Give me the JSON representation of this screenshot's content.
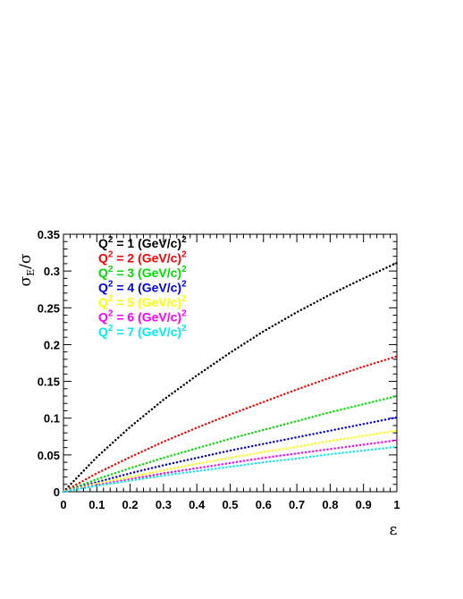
{
  "chart_data": {
    "type": "line",
    "xlabel": "ε",
    "ylabel_main": "σ",
    "ylabel_sub": "E",
    "ylabel_tail": "/σ",
    "xlim": [
      0,
      1
    ],
    "ylim": [
      0,
      0.35
    ],
    "x_ticks": [
      "0",
      "0.1",
      "0.2",
      "0.3",
      "0.4",
      "0.5",
      "0.6",
      "0.7",
      "0.8",
      "0.9",
      "1"
    ],
    "y_ticks": [
      "0",
      "0.05",
      "0.1",
      "0.15",
      "0.2",
      "0.25",
      "0.3",
      "0.35"
    ],
    "grid": false,
    "legend_position": "top-left",
    "x": [
      0,
      0.1,
      0.2,
      0.3,
      0.4,
      0.5,
      0.6,
      0.7,
      0.8,
      0.9,
      1.0
    ],
    "series": [
      {
        "name": "Q^2 = 1 (GeV/c)^2",
        "label_main": "Q",
        "label_sup1": "2",
        "label_mid": " = 1 (GeV/c)",
        "label_sup2": "2",
        "color": "#000000",
        "values": [
          0,
          0.047,
          0.088,
          0.125,
          0.158,
          0.189,
          0.218,
          0.244,
          0.268,
          0.29,
          0.311
        ]
      },
      {
        "name": "Q^2 = 2 (GeV/c)^2",
        "label_main": "Q",
        "label_sup1": "2",
        "label_mid": " = 2 (GeV/c)",
        "label_sup2": "2",
        "color": "#ff0000",
        "values": [
          0,
          0.025,
          0.047,
          0.068,
          0.087,
          0.105,
          0.122,
          0.139,
          0.155,
          0.17,
          0.184
        ]
      },
      {
        "name": "Q^2 = 3 (GeV/c)^2",
        "label_main": "Q",
        "label_sup1": "2",
        "label_mid": " = 3 (GeV/c)",
        "label_sup2": "2",
        "color": "#00dd00",
        "values": [
          0,
          0.017,
          0.032,
          0.046,
          0.059,
          0.072,
          0.084,
          0.096,
          0.108,
          0.119,
          0.13
        ]
      },
      {
        "name": "Q^2 = 4 (GeV/c)^2",
        "label_main": "Q",
        "label_sup1": "2",
        "label_mid": " = 4 (GeV/c)",
        "label_sup2": "2",
        "color": "#0000ee",
        "values": [
          0,
          0.013,
          0.025,
          0.036,
          0.046,
          0.056,
          0.065,
          0.074,
          0.083,
          0.092,
          0.101
        ]
      },
      {
        "name": "Q^2 = 5 (GeV/c)^2",
        "label_main": "Q",
        "label_sup1": "2",
        "label_mid": " = 5 (GeV/c)",
        "label_sup2": "2",
        "color": "#ffff00",
        "values": [
          0,
          0.011,
          0.02,
          0.029,
          0.038,
          0.046,
          0.054,
          0.061,
          0.069,
          0.076,
          0.083
        ]
      },
      {
        "name": "Q^2 = 6 (GeV/c)^2",
        "label_main": "Q",
        "label_sup1": "2",
        "label_mid": " = 6 (GeV/c)",
        "label_sup2": "2",
        "color": "#ff00ff",
        "values": [
          0,
          0.009,
          0.017,
          0.025,
          0.032,
          0.039,
          0.046,
          0.052,
          0.058,
          0.064,
          0.07
        ]
      },
      {
        "name": "Q^2 = 7 (GeV/c)^2",
        "label_main": "Q",
        "label_sup1": "2",
        "label_mid": " = 7 (GeV/c)",
        "label_sup2": "2",
        "color": "#00eeee",
        "values": [
          0,
          0.008,
          0.015,
          0.022,
          0.028,
          0.034,
          0.04,
          0.045,
          0.051,
          0.056,
          0.061
        ]
      }
    ]
  }
}
